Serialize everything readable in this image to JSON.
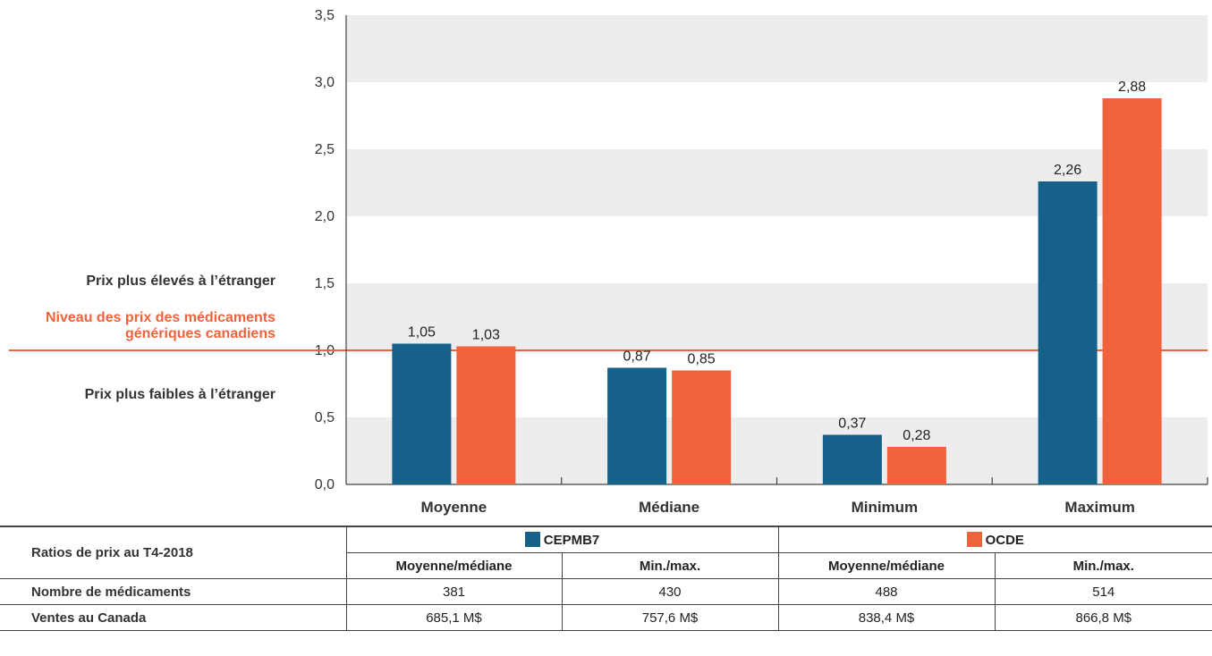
{
  "side_labels": {
    "higher": "Prix plus élevés à l’étranger",
    "reference_line1": "Niveau des prix des médicaments",
    "reference_line2": "génériques canadiens",
    "lower": "Prix plus faibles à l’étranger"
  },
  "chart_data": {
    "type": "bar",
    "categories": [
      "Moyenne",
      "Médiane",
      "Minimum",
      "Maximum"
    ],
    "series": [
      {
        "name": "CEPMB7",
        "values": [
          1.05,
          0.87,
          0.37,
          2.26
        ],
        "color": "#15618a"
      },
      {
        "name": "OCDE",
        "values": [
          1.03,
          0.85,
          0.28,
          2.88
        ],
        "color": "#f0623b"
      }
    ],
    "value_labels": [
      [
        "1,05",
        "0,87",
        "0,37",
        "2,26"
      ],
      [
        "1,03",
        "0,85",
        "0,28",
        "2,88"
      ]
    ],
    "ylim": [
      0,
      3.5
    ],
    "yticks": [
      0,
      0.5,
      1.0,
      1.5,
      2.0,
      2.5,
      3.0,
      3.5
    ],
    "ytick_labels": [
      "0,0",
      "0,5",
      "1,0",
      "1,5",
      "2,0",
      "2,5",
      "3,0",
      "3,5"
    ],
    "reference_line": 1.0,
    "reference_color": "#f0623b",
    "band_color": "#ededed",
    "grid": false
  },
  "table": {
    "title": "Ratios de prix au T4-2018",
    "groups": [
      {
        "name": "CEPMB7",
        "color": "#15618a"
      },
      {
        "name": "OCDE",
        "color": "#f0623b"
      }
    ],
    "subheaders": [
      "Moyenne/médiane",
      "Min./max.",
      "Moyenne/médiane",
      "Min./max."
    ],
    "rows": [
      {
        "label": "Nombre de médicaments",
        "values": [
          "381",
          "430",
          "488",
          "514"
        ]
      },
      {
        "label": "Ventes au Canada",
        "values": [
          "685,1 M$",
          "757,6 M$",
          "838,4 M$",
          "866,8 M$"
        ]
      }
    ]
  }
}
